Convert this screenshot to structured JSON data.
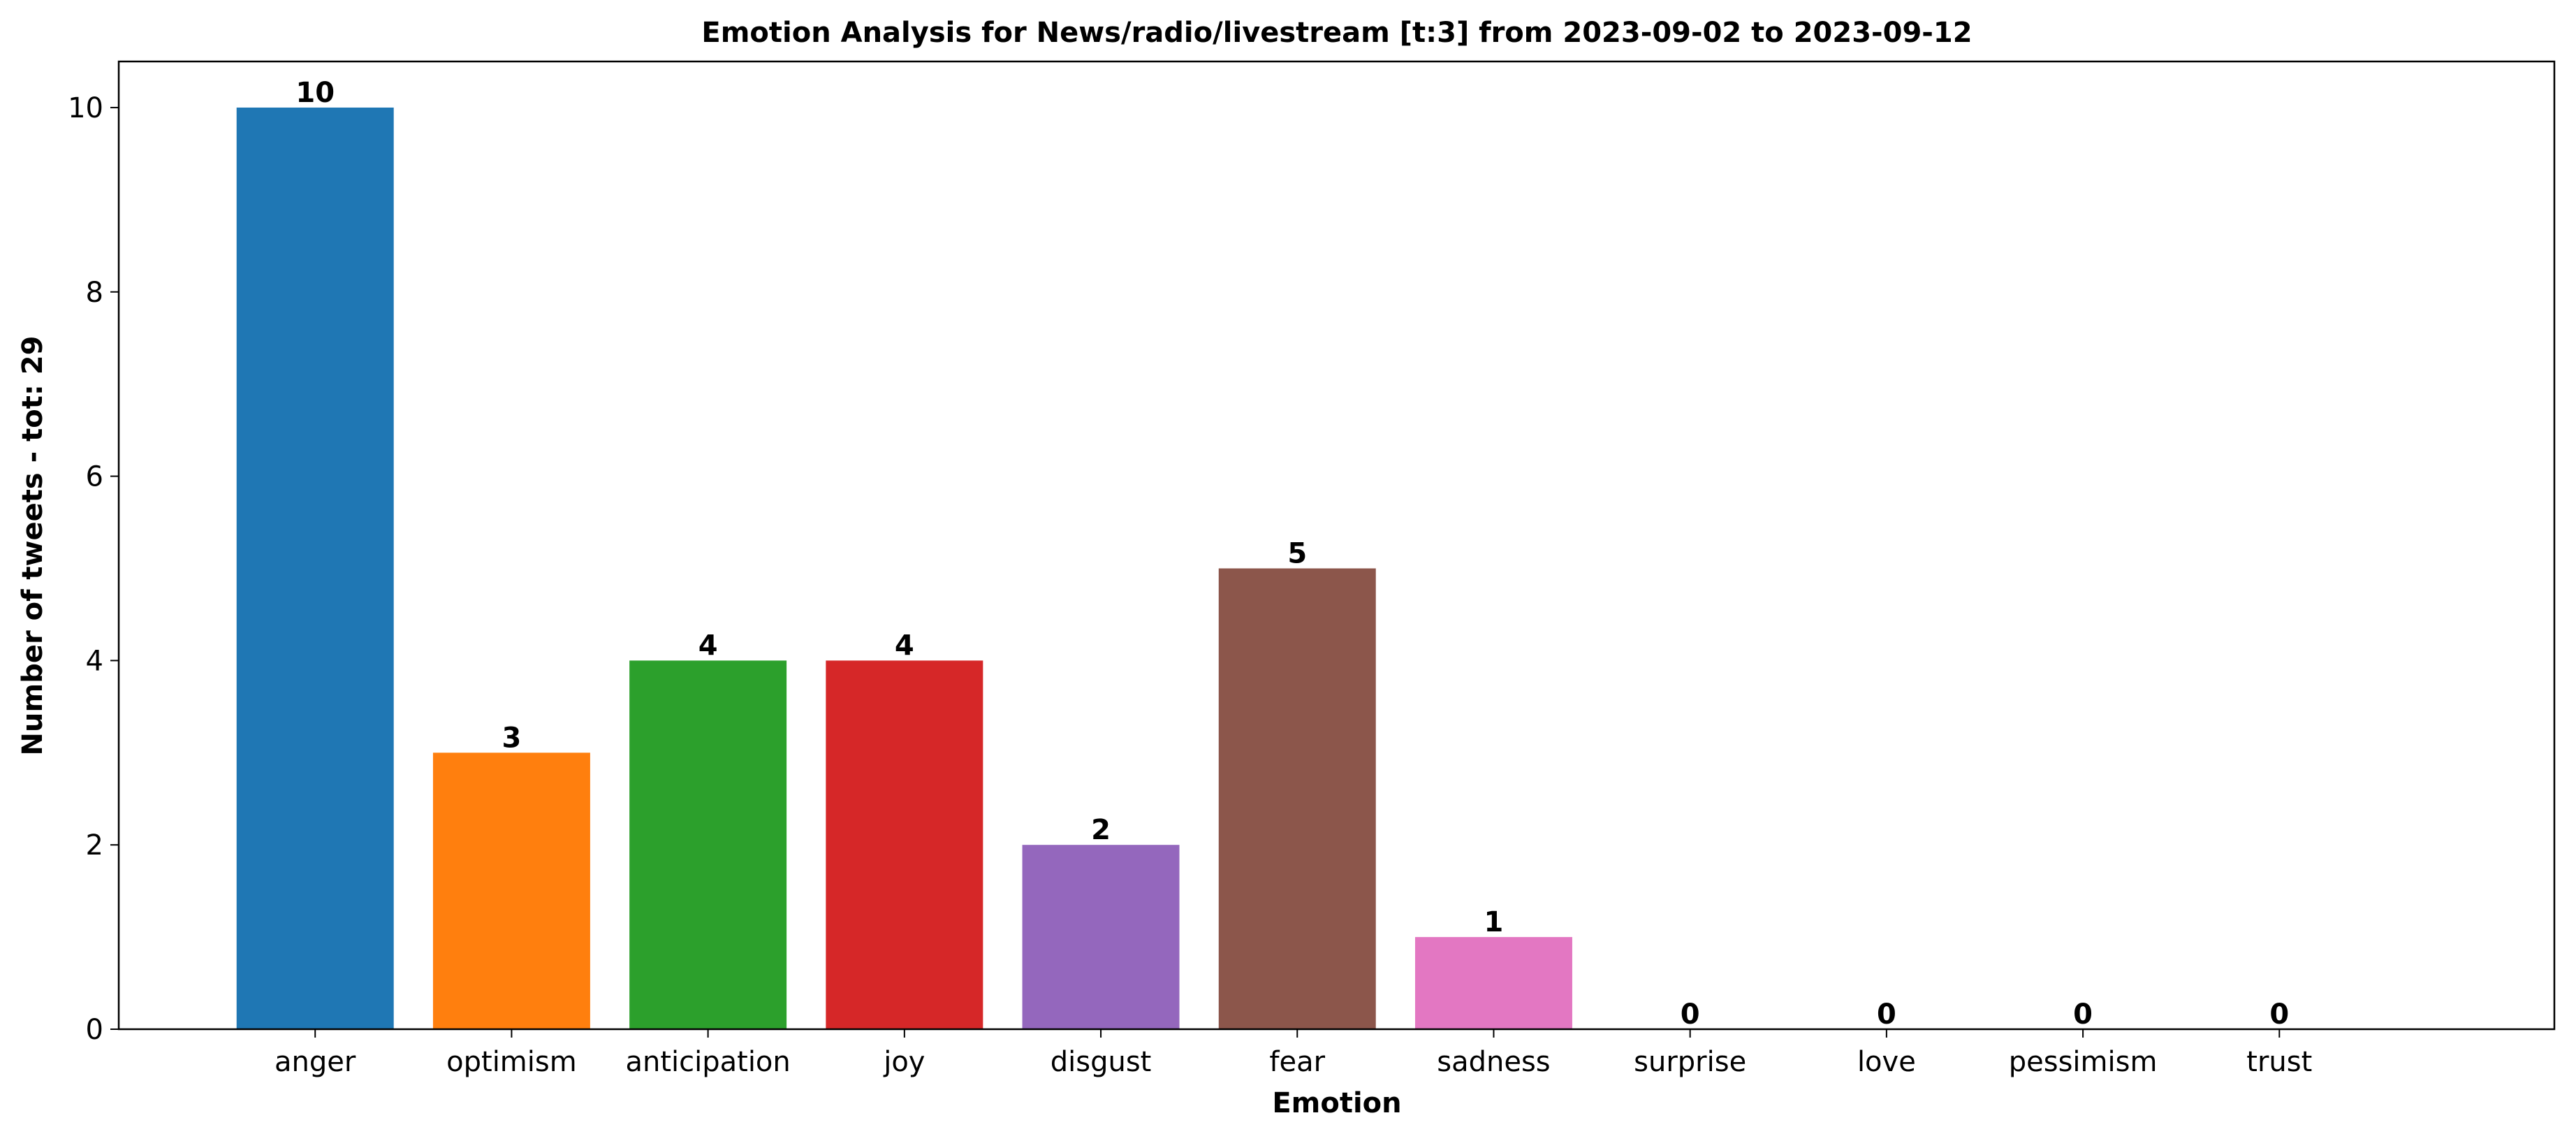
{
  "chart_data": {
    "type": "bar",
    "title": "Emotion Analysis for News/radio/livestream [t:3] from 2023-09-02 to 2023-09-12",
    "xlabel": "Emotion",
    "ylabel": "Number of tweets - tot: 29",
    "categories": [
      "anger",
      "optimism",
      "anticipation",
      "joy",
      "disgust",
      "fear",
      "sadness",
      "surprise",
      "love",
      "pessimism",
      "trust"
    ],
    "values": [
      10,
      3,
      4,
      4,
      2,
      5,
      1,
      0,
      0,
      0,
      0
    ],
    "colors": [
      "#1f77b4",
      "#ff7f0e",
      "#2ca02c",
      "#d62728",
      "#9467bd",
      "#8c564b",
      "#e377c2",
      "#7f7f7f",
      "#bcbd22",
      "#17becf",
      "#1f77b4"
    ],
    "ylim": [
      0,
      10.5
    ],
    "yticks": [
      0,
      2,
      4,
      6,
      8,
      10
    ],
    "grid": false,
    "legend": "none"
  }
}
